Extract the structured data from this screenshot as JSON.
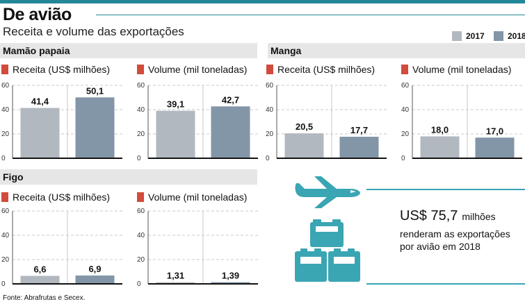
{
  "header": {
    "title": "De avião",
    "subtitle": "Receita e volume  das exportações"
  },
  "legend": [
    {
      "label": "2017",
      "color": "#b2b8bf"
    },
    {
      "label": "2018",
      "color": "#8396a8"
    }
  ],
  "sections": {
    "mamao": "Mamão papaia",
    "manga": "Manga",
    "figo": "Figo"
  },
  "chart_data": [
    {
      "id": "mamao-receita",
      "type": "bar",
      "title": "Receita (US$ milhões)",
      "categories": [
        "2017",
        "2018"
      ],
      "values": [
        41.4,
        50.1
      ],
      "labels": [
        "41,4",
        "50,1"
      ],
      "ylim": [
        0,
        60
      ],
      "yticks": [
        "0",
        "20",
        "40",
        "60"
      ]
    },
    {
      "id": "mamao-volume",
      "type": "bar",
      "title": "Volume (mil toneladas)",
      "categories": [
        "2017",
        "2018"
      ],
      "values": [
        39.1,
        42.7
      ],
      "labels": [
        "39,1",
        "42,7"
      ],
      "ylim": [
        0,
        60
      ],
      "yticks": [
        "0",
        "20",
        "40",
        "60"
      ]
    },
    {
      "id": "manga-receita",
      "type": "bar",
      "title": "Receita (US$ milhões)",
      "categories": [
        "2017",
        "2018"
      ],
      "values": [
        20.5,
        17.7
      ],
      "labels": [
        "20,5",
        "17,7"
      ],
      "ylim": [
        0,
        60
      ],
      "yticks": [
        "0",
        "20",
        "40",
        "60"
      ]
    },
    {
      "id": "manga-volume",
      "type": "bar",
      "title": "Volume (mil toneladas)",
      "categories": [
        "2017",
        "2018"
      ],
      "values": [
        18.0,
        17.0
      ],
      "labels": [
        "18,0",
        "17,0"
      ],
      "ylim": [
        0,
        60
      ],
      "yticks": [
        "0",
        "20",
        "40",
        "60"
      ]
    },
    {
      "id": "figo-receita",
      "type": "bar",
      "title": "Receita (US$ milhões)",
      "categories": [
        "2017",
        "2018"
      ],
      "values": [
        6.6,
        6.9
      ],
      "labels": [
        "6,6",
        "6,9"
      ],
      "ylim": [
        0,
        60
      ],
      "yticks": [
        "0",
        "20",
        "40",
        "60"
      ]
    },
    {
      "id": "figo-volume",
      "type": "bar",
      "title": "Volume (mil toneladas)",
      "categories": [
        "2017",
        "2018"
      ],
      "values": [
        1.31,
        1.39
      ],
      "labels": [
        "1,31",
        "1,39"
      ],
      "ylim": [
        0,
        60
      ],
      "yticks": [
        "0",
        "20",
        "40",
        "60"
      ]
    }
  ],
  "callout": {
    "amount": "US$ 75,7",
    "unit": "milhões",
    "text": "renderam as exportações por avião em 2018",
    "color": "#3aa5b3"
  },
  "icons": [
    "airplane-icon",
    "luggage-icon"
  ],
  "source": "Fonte: Abrafrutas e Secex."
}
